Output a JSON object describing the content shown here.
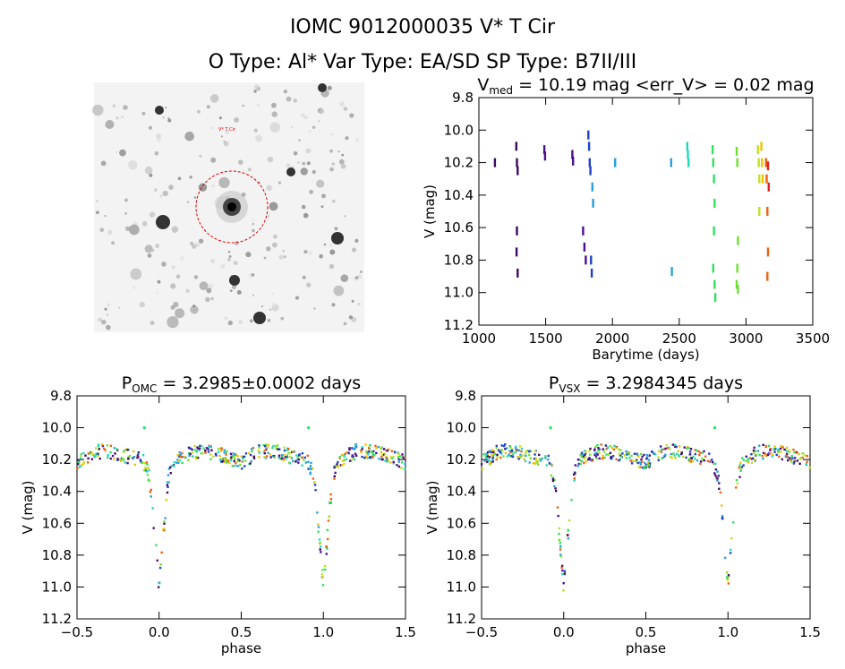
{
  "header": {
    "line1": "IOMC 9012000035    V* T Cir",
    "line2": "O Type: Al*  Var Type: EA/SD  SP Type: B7II/III"
  },
  "finder": {
    "type": "image",
    "label_star": "V* T Cir"
  },
  "colors": {
    "axes": "#000000",
    "aperture_circle": "#e00000"
  },
  "chart_data": [
    {
      "type": "scatter",
      "title_base": "V",
      "title_sub": "med",
      "title_rest": " = 10.19 mag <err_V> = 0.02 mag",
      "xlabel": "Barytime (days)",
      "ylabel": "V (mag)",
      "xlim": [
        1000,
        3500
      ],
      "ylim": [
        11.2,
        9.8
      ],
      "y_inverted": true,
      "xticks": [
        "1000",
        "1500",
        "2000",
        "2500",
        "3000",
        "3500"
      ],
      "yticks": [
        "9.8",
        "10.0",
        "10.2",
        "10.4",
        "10.6",
        "10.8",
        "11.0",
        "11.2"
      ],
      "series": [
        {
          "color": "#3a0a5e",
          "x": [
            1120,
            1280,
            1285,
            1290,
            1285,
            1282,
            1290
          ],
          "y": [
            10.2,
            10.1,
            10.2,
            10.25,
            10.62,
            10.75,
            10.88
          ]
        },
        {
          "color": "#4a0f8e",
          "x": [
            1490,
            1495,
            1700,
            1705,
            1780,
            1790,
            1800
          ],
          "y": [
            10.12,
            10.16,
            10.15,
            10.19,
            10.62,
            10.72,
            10.8
          ]
        },
        {
          "color": "#2040d0",
          "x": [
            1820,
            1825,
            1830,
            1835,
            1840,
            1845
          ],
          "y": [
            10.03,
            10.1,
            10.2,
            10.25,
            10.8,
            10.88
          ]
        },
        {
          "color": "#28a0e0",
          "x": [
            1850,
            1855,
            2020,
            2440,
            2445
          ],
          "y": [
            10.35,
            10.45,
            10.2,
            10.2,
            10.87
          ]
        },
        {
          "color": "#20d8c0",
          "x": [
            2560,
            2565,
            2570
          ],
          "y": [
            10.1,
            10.15,
            10.2
          ]
        },
        {
          "color": "#30e060",
          "x": [
            2750,
            2755,
            2760,
            2765,
            2760,
            2755,
            2765,
            2770
          ],
          "y": [
            10.12,
            10.2,
            10.3,
            10.45,
            10.62,
            10.85,
            10.95,
            11.03
          ]
        },
        {
          "color": "#70e030",
          "x": [
            2930,
            2935,
            2940,
            2935,
            2930,
            2940
          ],
          "y": [
            10.13,
            10.2,
            10.68,
            10.85,
            10.95,
            10.98
          ]
        },
        {
          "color": "#c0e020",
          "x": [
            3090,
            3095,
            3100,
            3100
          ],
          "y": [
            10.12,
            10.2,
            10.3,
            10.5
          ]
        },
        {
          "color": "#f0c000",
          "x": [
            3115,
            3120,
            3125
          ],
          "y": [
            10.1,
            10.2,
            10.3
          ]
        },
        {
          "color": "#f06010",
          "x": [
            3150,
            3155,
            3160,
            3165,
            3160
          ],
          "y": [
            10.2,
            10.3,
            10.5,
            10.75,
            10.9
          ]
        },
        {
          "color": "#e02020",
          "x": [
            3165,
            3170
          ],
          "y": [
            10.22,
            10.35
          ]
        }
      ]
    },
    {
      "type": "scatter",
      "title_base": "P",
      "title_sub": "OMC",
      "title_rest": " = 3.2985±0.0002 days",
      "xlabel": "phase",
      "ylabel": "V (mag)",
      "xlim": [
        -0.5,
        1.5
      ],
      "ylim": [
        11.2,
        9.8
      ],
      "y_inverted": true,
      "xticks": [
        "−0.5",
        "0.0",
        "0.5",
        "1.0",
        "1.5"
      ],
      "yticks": [
        "9.8",
        "10.0",
        "10.2",
        "10.4",
        "10.6",
        "10.8",
        "11.0",
        "11.2"
      ],
      "curve": {
        "phase": [
          -0.5,
          -0.4,
          -0.3,
          -0.2,
          -0.1,
          -0.06,
          -0.04,
          -0.02,
          0.0,
          0.02,
          0.04,
          0.06,
          0.1,
          0.2,
          0.3,
          0.4,
          0.5,
          0.6,
          0.7,
          0.8,
          0.9,
          0.94,
          0.96,
          0.98,
          1.0,
          1.02,
          1.04,
          1.06,
          1.1,
          1.2,
          1.3,
          1.4,
          1.5
        ],
        "mag": [
          10.22,
          10.15,
          10.15,
          10.18,
          10.2,
          10.3,
          10.5,
          10.75,
          11.0,
          10.75,
          10.5,
          10.3,
          10.2,
          10.15,
          10.15,
          10.18,
          10.22,
          10.15,
          10.15,
          10.18,
          10.2,
          10.3,
          10.5,
          10.75,
          11.0,
          10.75,
          10.5,
          10.3,
          10.2,
          10.15,
          10.15,
          10.18,
          10.22
        ]
      },
      "outliers": {
        "phase": [
          -0.09,
          0.91
        ],
        "mag": [
          10.0,
          10.0
        ]
      }
    },
    {
      "type": "scatter",
      "title_base": "P",
      "title_sub": "VSX",
      "title_rest": " = 3.2984345 days",
      "xlabel": "phase",
      "ylabel": "V (mag)",
      "xlim": [
        -0.5,
        1.5
      ],
      "ylim": [
        11.2,
        9.8
      ],
      "y_inverted": true,
      "xticks": [
        "−0.5",
        "0.0",
        "0.5",
        "1.0",
        "1.5"
      ],
      "yticks": [
        "9.8",
        "10.0",
        "10.2",
        "10.4",
        "10.6",
        "10.8",
        "11.0",
        "11.2"
      ],
      "curve": {
        "phase": [
          -0.5,
          -0.4,
          -0.3,
          -0.2,
          -0.1,
          -0.06,
          -0.04,
          -0.02,
          0.0,
          0.02,
          0.04,
          0.06,
          0.1,
          0.2,
          0.3,
          0.4,
          0.5,
          0.6,
          0.7,
          0.8,
          0.9,
          0.94,
          0.96,
          0.98,
          1.0,
          1.02,
          1.04,
          1.06,
          1.1,
          1.2,
          1.3,
          1.4,
          1.5
        ],
        "mag": [
          10.22,
          10.15,
          10.15,
          10.18,
          10.2,
          10.3,
          10.5,
          10.75,
          11.0,
          10.75,
          10.5,
          10.3,
          10.2,
          10.15,
          10.15,
          10.18,
          10.22,
          10.15,
          10.15,
          10.18,
          10.2,
          10.3,
          10.5,
          10.75,
          11.0,
          10.75,
          10.5,
          10.3,
          10.2,
          10.15,
          10.15,
          10.18,
          10.22
        ]
      },
      "outliers": {
        "phase": [
          -0.08,
          0.92
        ],
        "mag": [
          10.0,
          10.0
        ]
      }
    }
  ]
}
